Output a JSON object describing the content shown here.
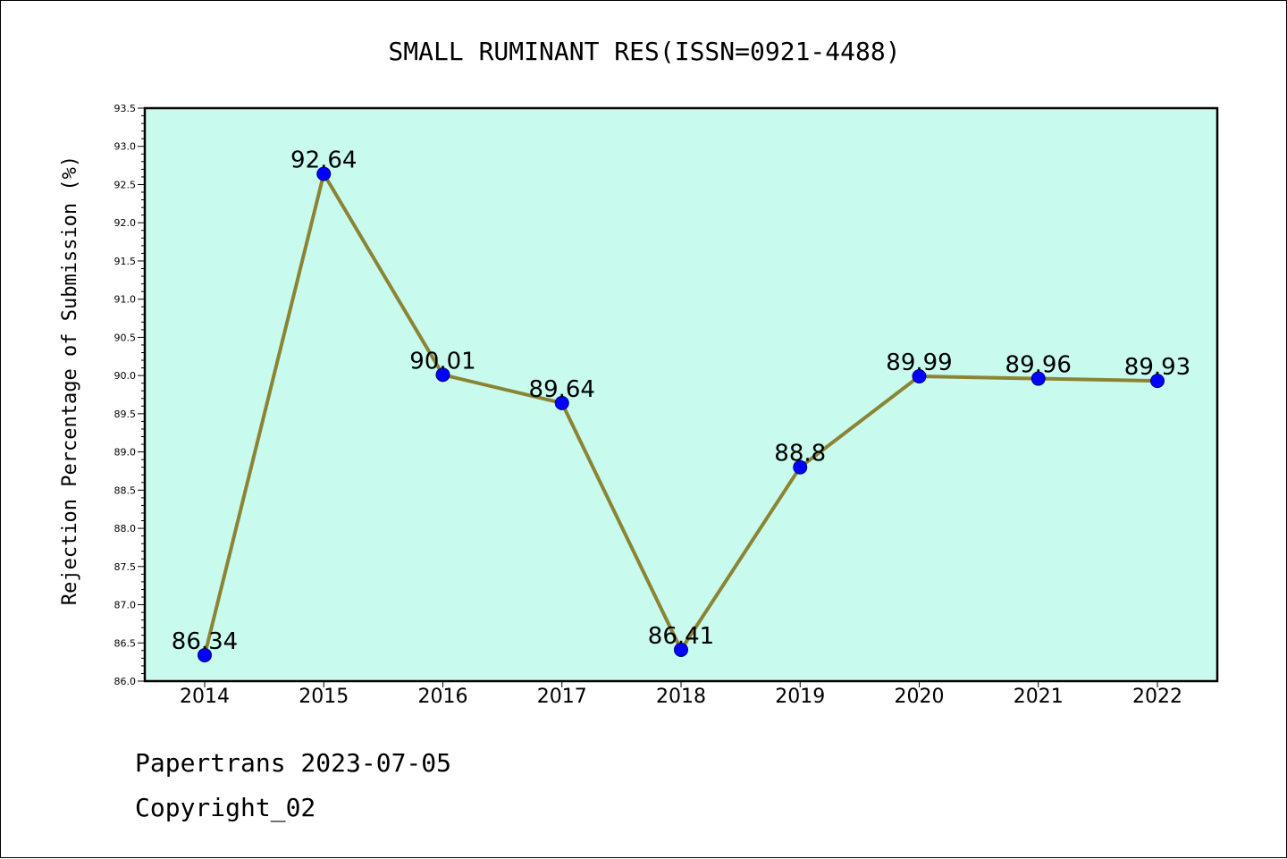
{
  "colors": {
    "plot_background": "#c8fbee",
    "line": "#8b8434",
    "marker_fill": "#0000ff",
    "marker_edge": "#00007f",
    "axis": "#000000"
  },
  "chart_data": {
    "type": "line",
    "title": "SMALL RUMINANT RES(ISSN=0921-4488)",
    "xlabel": "",
    "ylabel": "Rejection Percentage of Submission (%)",
    "categories": [
      "2014",
      "2015",
      "2016",
      "2017",
      "2018",
      "2019",
      "2020",
      "2021",
      "2022"
    ],
    "series": [
      {
        "values": [
          86.34,
          92.64,
          90.01,
          89.64,
          86.41,
          88.8,
          89.99,
          89.96,
          89.93
        ],
        "data_labels": [
          "86.34",
          "92.64",
          "90.01",
          "89.64",
          "86.41",
          "88.8",
          "89.99",
          "89.96",
          "89.93"
        ]
      }
    ],
    "ylim": [
      86.0,
      93.5
    ],
    "yticks": [
      "86.0",
      "86.5",
      "87.0",
      "87.5",
      "88.0",
      "88.5",
      "89.0",
      "89.5",
      "90.0",
      "90.5",
      "91.0",
      "91.5",
      "92.0",
      "92.5",
      "93.0",
      "93.5"
    ],
    "grid": false,
    "legend": "none"
  },
  "footer": {
    "line1": "Papertrans 2023-07-05",
    "line2": "Copyright_02"
  }
}
